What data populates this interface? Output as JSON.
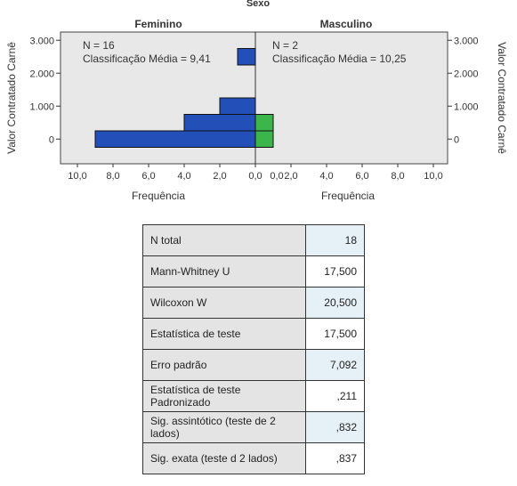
{
  "chart_data": {
    "type": "bar",
    "title": "Sexo",
    "panels": [
      {
        "name": "Feminino",
        "annotation_n": "N = 16",
        "annotation_rank": "Classificação Média = 9,41",
        "bins": [
          {
            "y": 0,
            "frequency": 9
          },
          {
            "y": 500,
            "frequency": 4
          },
          {
            "y": 1000,
            "frequency": 2
          },
          {
            "y": 2500,
            "frequency": 1
          }
        ],
        "color": "#2350b8"
      },
      {
        "name": "Masculino",
        "annotation_n": "N = 2",
        "annotation_rank": "Classificação Média = 10,25",
        "bins": [
          {
            "y": 0,
            "frequency": 1
          },
          {
            "y": 500,
            "frequency": 1
          }
        ],
        "color": "#3cb54a"
      }
    ],
    "ylabel_left": "Valor Contratado Carnê",
    "ylabel_right": "Valor Contratado Carnê",
    "xlabel": "Frequência",
    "ylim": [
      -750,
      3250
    ],
    "xlim": [
      0,
      10
    ],
    "yticks": [
      0,
      1000,
      2000,
      3000
    ],
    "ytick_labels": [
      "0",
      "1.000",
      "2.000",
      "3.000"
    ],
    "xticks": [
      10,
      8,
      6,
      4,
      2,
      0
    ],
    "xtick_labels": [
      "10,0",
      "8,0",
      "6,0",
      "4,0",
      "2,0",
      "0,0"
    ],
    "xticks_right": [
      0,
      2,
      4,
      6,
      8,
      10
    ],
    "xtick_labels_right": [
      "0,0",
      "2,0",
      "4,0",
      "6,0",
      "8,0",
      "10,0"
    ],
    "bin_width": 500
  },
  "table": {
    "rows": [
      {
        "label": "N total",
        "value": "18"
      },
      {
        "label": "Mann-Whitney U",
        "value": "17,500"
      },
      {
        "label": "Wilcoxon W",
        "value": "20,500"
      },
      {
        "label": "Estatística de teste",
        "value": "17,500"
      },
      {
        "label": "Erro padrão",
        "value": "7,092"
      },
      {
        "label": "Estatística de teste Padronizado",
        "value": ",211"
      },
      {
        "label": "Sig. assintótico (teste de 2 lados)",
        "value": ",832"
      },
      {
        "label": "Sig. exata (teste d 2 lados)",
        "value": ",837"
      }
    ]
  }
}
